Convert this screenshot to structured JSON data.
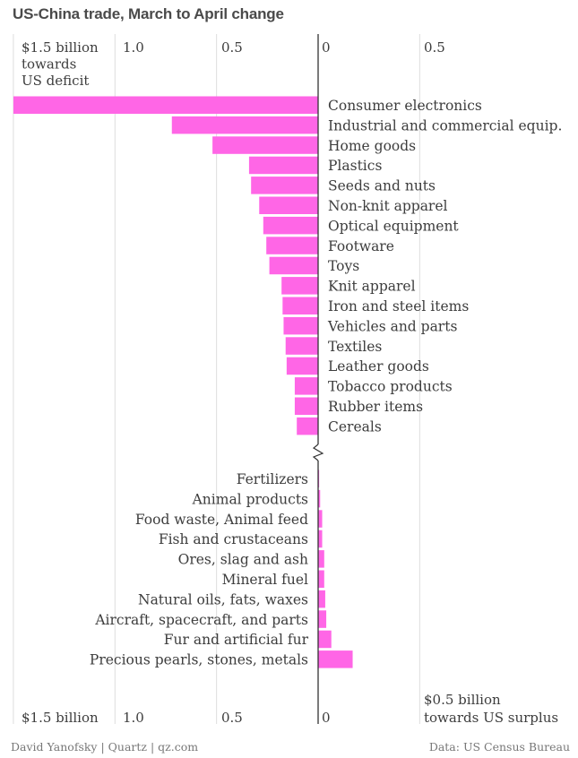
{
  "title": "US-China trade, March to April change",
  "chart_data": {
    "type": "bar",
    "orientation": "horizontal",
    "title": "US-China trade, March to April change",
    "top_axis_ticks": [
      "$1.5 billion towards US deficit",
      "1.0",
      "0.5",
      "0",
      "0.5"
    ],
    "bottom_axis_ticks": [
      "$1.5 billion",
      "1.0",
      "0.5",
      "0",
      "$0.5 billion towards US surplus"
    ],
    "xlim": [
      -1.5,
      0.5
    ],
    "axis_break_after_index": 16,
    "units": "billion USD; negative = towards US deficit, positive = towards US surplus",
    "categories": [
      "Consumer electronics",
      "Industrial and commercial equip.",
      "Home goods",
      "Plastics",
      "Seeds and nuts",
      "Non-knit apparel",
      "Optical equipment",
      "Footware",
      "Toys",
      "Knit apparel",
      "Iron and steel items",
      "Vehicles and parts",
      "Textiles",
      "Leather goods",
      "Tobacco products",
      "Rubber items",
      "Cereals",
      "Fertilizers",
      "Animal products",
      "Food waste, Animal feed",
      "Fish and crustaceans",
      "Ores, slag and ash",
      "Mineral fuel",
      "Natural oils, fats, waxes",
      "Aircraft, spacecraft, and parts",
      "Fur and artificial fur",
      "Precious pearls, stones, metals"
    ],
    "values": [
      -1.5,
      -0.72,
      -0.52,
      -0.34,
      -0.33,
      -0.29,
      -0.27,
      -0.255,
      -0.24,
      -0.18,
      -0.175,
      -0.17,
      -0.16,
      -0.155,
      -0.115,
      -0.115,
      -0.105,
      0.005,
      0.01,
      0.02,
      0.02,
      0.03,
      0.03,
      0.035,
      0.04,
      0.065,
      0.17
    ],
    "bar_color": "#ff66e6",
    "grid": true
  },
  "footer": {
    "left": "David Yanofsky | Quartz | qz.com",
    "right": "Data: US Census Bureau"
  }
}
